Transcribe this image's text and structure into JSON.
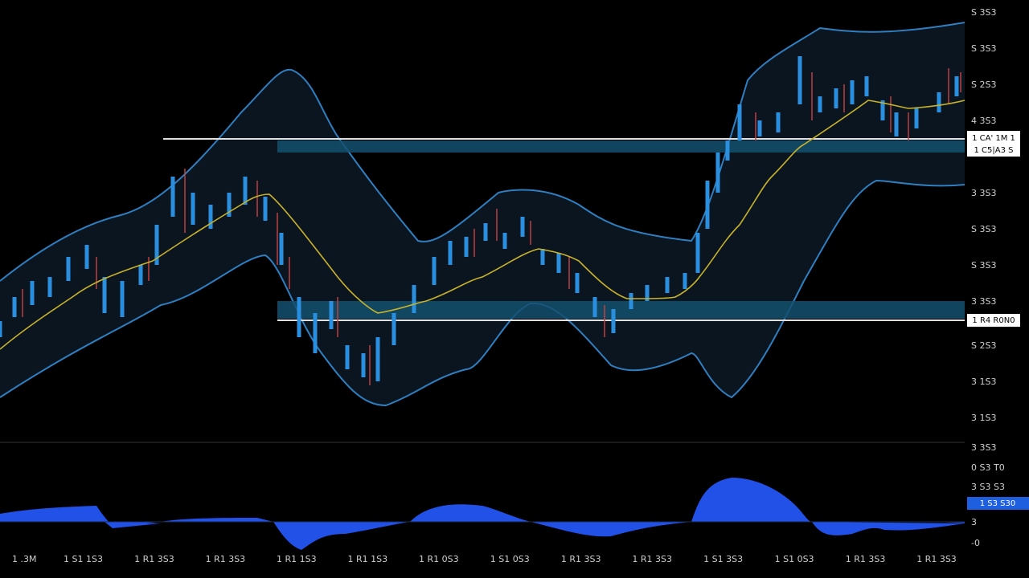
{
  "price_axis": [
    "S 3S3",
    "S 3S3",
    "S 2S3",
    "4 3S3",
    "3 3S3",
    "S 3S3",
    "S 3S3",
    "3 3S3",
    "S 2S3",
    "3 1S3",
    "3 1S3"
  ],
  "level_tags": [
    "1 CA' 1M 1",
    "1 C5|A3 S",
    "1 R4 R0N0"
  ],
  "oscillator_axis": [
    "3 3S3",
    "0 S3 T0",
    "3 S3 S3",
    "3",
    "-0"
  ],
  "oscillator_tag": "1 S3 S30",
  "time_axis": [
    "1 .3M",
    "1 S1 1S3",
    "1 R1 3S3",
    "1 R1 3S3",
    "1 R1 1S3",
    "1 R1 1S3",
    "1 R1 0S3",
    "1 S1 0S3",
    "1 R1 3S3",
    "1 R1 3S3",
    "1 S1 3S3",
    "1 S1 0S3",
    "1 R1 3S3",
    "1 R1 3S3"
  ]
}
